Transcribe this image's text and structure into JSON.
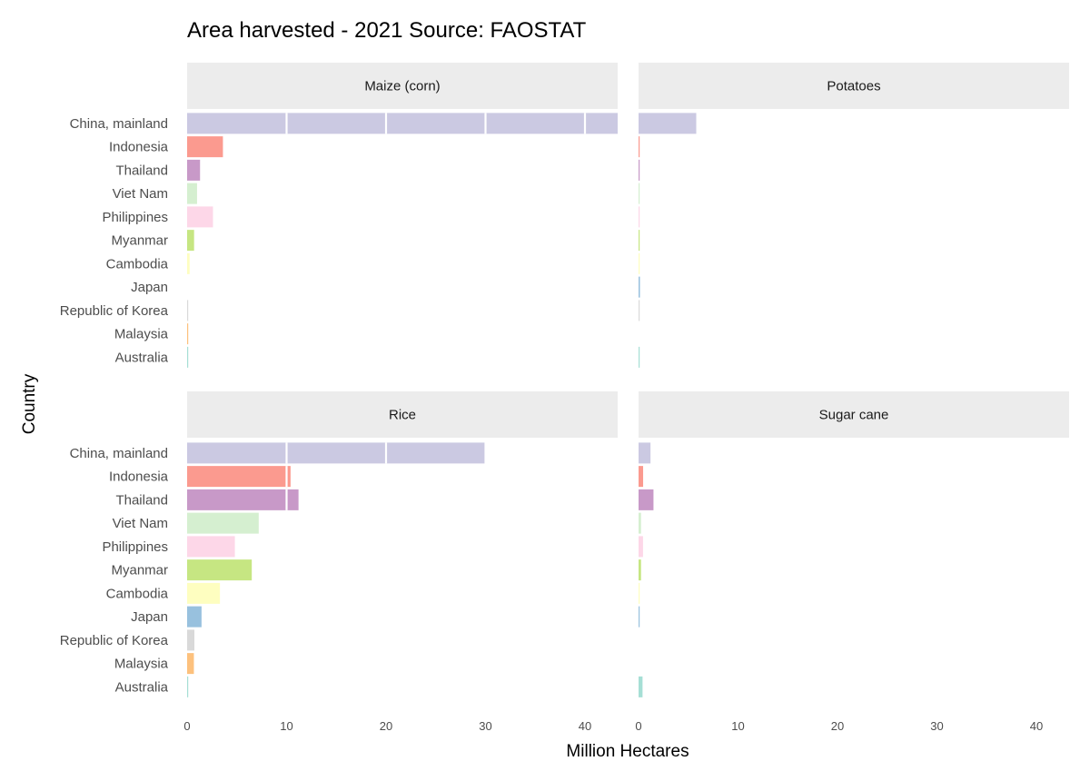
{
  "chart_data": {
    "type": "bar",
    "orientation": "horizontal",
    "title": "Area harvested - 2021 Source: FAOSTAT",
    "xlabel": "Million Hectares",
    "ylabel": "Country",
    "xlim": [
      0,
      43
    ],
    "xticks": [
      "0",
      "10",
      "20",
      "30",
      "40"
    ],
    "grid": false,
    "categories": [
      "China, mainland",
      "Indonesia",
      "Thailand",
      "Viet Nam",
      "Philippines",
      "Myanmar",
      "Cambodia",
      "Japan",
      "Republic of Korea",
      "Malaysia",
      "Australia"
    ],
    "colors": {
      "China, mainland": "#cbc9e2",
      "Indonesia": "#fb9a8f",
      "Thailand": "#c899c8",
      "Viet Nam": "#d5efd0",
      "Philippines": "#fdd7e8",
      "Myanmar": "#c6e682",
      "Cambodia": "#fefec0",
      "Japan": "#98c1de",
      "Republic of Korea": "#d9d9d9",
      "Malaysia": "#fdc17d",
      "Australia": "#a6dfd5"
    },
    "panels": [
      {
        "name": "Maize (corn)",
        "values": [
          43.4,
          3.6,
          1.3,
          1.0,
          2.6,
          0.7,
          0.25,
          0.0,
          0.02,
          0.01,
          0.07
        ],
        "segment_breaks": [
          10,
          20,
          30,
          40
        ]
      },
      {
        "name": "Potatoes",
        "values": [
          5.8,
          0.07,
          0.05,
          0.03,
          0.01,
          0.05,
          0.01,
          0.14,
          0.02,
          0.0,
          0.03
        ],
        "segment_breaks": []
      },
      {
        "name": "Rice",
        "values": [
          29.9,
          10.4,
          11.2,
          7.2,
          4.8,
          6.5,
          3.3,
          1.45,
          0.73,
          0.68,
          0.05
        ],
        "segment_breaks": [
          10,
          20
        ]
      },
      {
        "name": "Sugar cane",
        "values": [
          1.2,
          0.46,
          1.5,
          0.25,
          0.45,
          0.25,
          0.05,
          0.02,
          0.0,
          0.0,
          0.4
        ],
        "segment_breaks": []
      }
    ]
  }
}
